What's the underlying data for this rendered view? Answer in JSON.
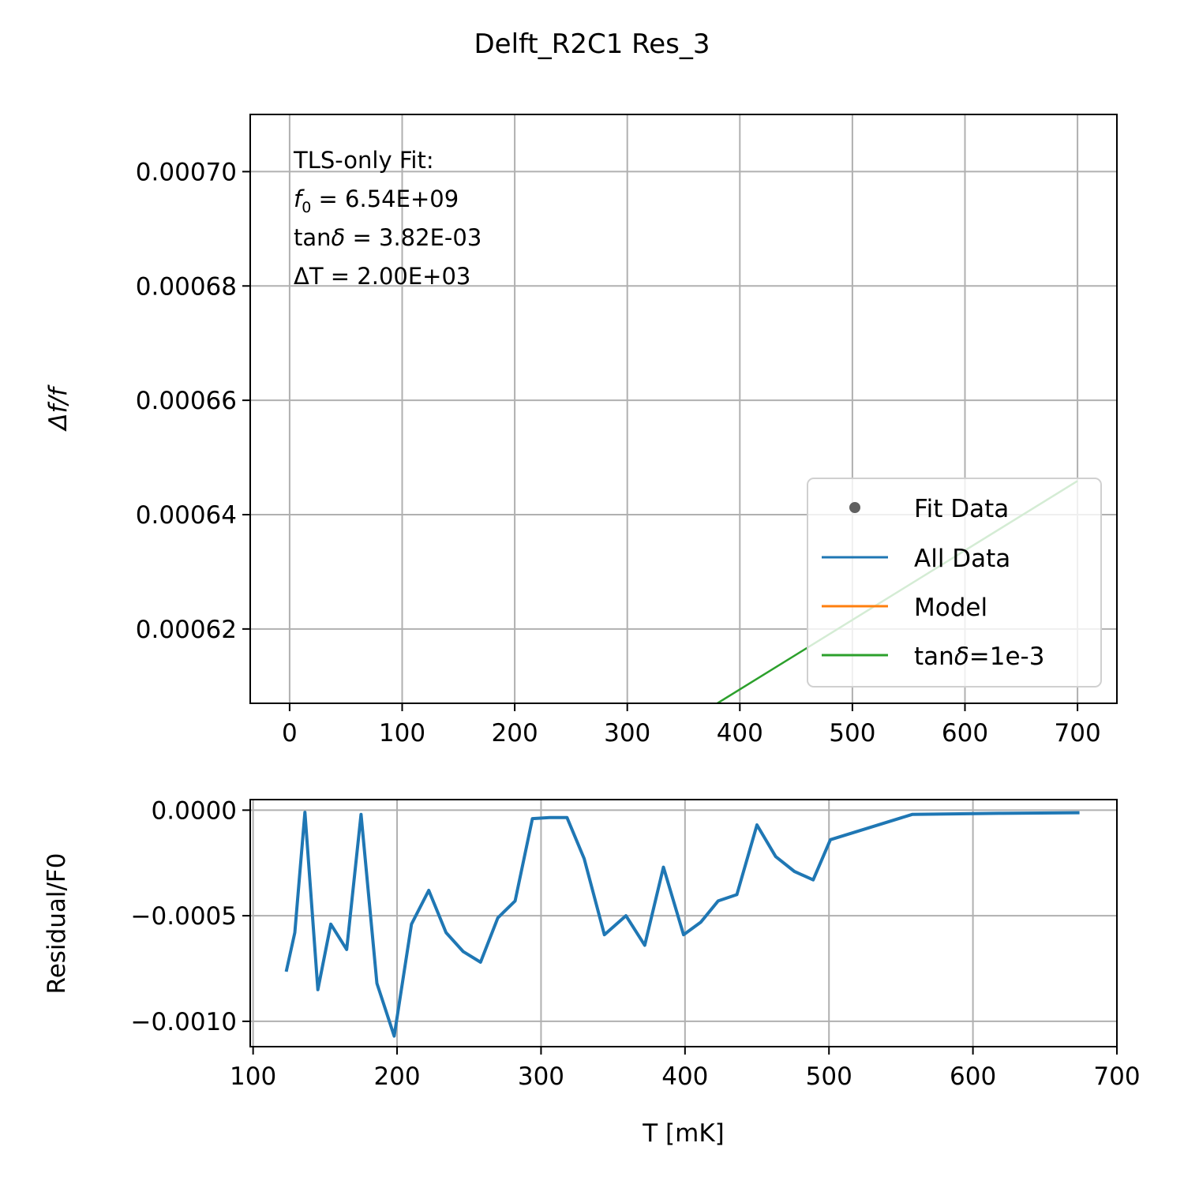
{
  "figure": {
    "title": "Delft_R2C1 Res_3"
  },
  "chart_data": [
    {
      "type": "line",
      "xlabel": "",
      "ylabel": "Δf/f",
      "xlim": [
        -35,
        735
      ],
      "ylim": [
        0.000607,
        0.00071
      ],
      "x_ticks": [
        0,
        100,
        200,
        300,
        400,
        500,
        600,
        700
      ],
      "x_tick_labels": [
        "0",
        "100",
        "200",
        "300",
        "400",
        "500",
        "600",
        "700"
      ],
      "y_ticks": [
        0.00062,
        0.00064,
        0.00066,
        0.00068,
        0.0007
      ],
      "y_tick_labels": [
        "0.00062",
        "0.00064",
        "0.00066",
        "0.00068",
        "0.00070"
      ],
      "grid": true,
      "annotation": {
        "line1": "TLS-only Fit:",
        "line2_var": "f",
        "line2_sub": "0",
        "line2_rest": " = 6.54E+09",
        "line3_pre": "tan",
        "line3_var": "δ",
        "line3_rest": " = 3.82E-03",
        "line4": "ΔT = 2.00E+03"
      },
      "legend": {
        "placement": "lower right",
        "entries": [
          {
            "label": "Fit Data",
            "marker": "dot",
            "color": "#606060"
          },
          {
            "label": "All Data",
            "marker": "line",
            "color": "#1f77b4"
          },
          {
            "label": "Model",
            "marker": "line",
            "color": "#ff7f0e"
          },
          {
            "label_pre": "tan",
            "label_var": "δ",
            "label_rest": "=1e-3",
            "marker": "line",
            "color": "#2ca02c"
          }
        ]
      },
      "series": [
        {
          "color": "#2ca02c",
          "x": [
            380,
            700
          ],
          "y": [
            0.000607,
            0.0006459
          ]
        }
      ]
    },
    {
      "type": "line",
      "xlabel": "T [mK]",
      "ylabel": "Residual/F0",
      "xlim": [
        98,
        700
      ],
      "ylim": [
        -0.00112,
        5e-05
      ],
      "x_ticks": [
        100,
        200,
        300,
        400,
        500,
        600,
        700
      ],
      "x_tick_labels": [
        "100",
        "200",
        "300",
        "400",
        "500",
        "600",
        "700"
      ],
      "y_ticks": [
        0,
        -0.0005,
        -0.001
      ],
      "y_tick_labels": [
        "0.0000",
        "−0.0005",
        "−0.0010"
      ],
      "grid": true,
      "series": [
        {
          "color": "#1f77b4",
          "x": [
            123,
            129,
            136,
            145,
            154,
            165,
            175,
            186,
            198,
            210,
            222,
            234,
            246,
            258,
            270,
            282,
            294,
            306,
            318,
            330,
            344,
            359,
            372,
            385,
            399,
            411,
            423,
            436,
            450,
            463,
            476,
            489,
            501,
            558,
            618,
            674
          ],
          "y": [
            -0.000765,
            -0.00058,
            -1e-05,
            -0.00085,
            -0.00054,
            -0.00066,
            -2e-05,
            -0.00082,
            -0.00107,
            -0.00054,
            -0.00038,
            -0.00058,
            -0.00067,
            -0.00072,
            -0.00051,
            -0.00043,
            -4e-05,
            -3.5e-05,
            -3.5e-05,
            -0.00023,
            -0.00059,
            -0.0005,
            -0.00064,
            -0.00027,
            -0.00059,
            -0.00053,
            -0.00043,
            -0.0004,
            -7e-05,
            -0.00022,
            -0.00029,
            -0.00033,
            -0.00014,
            -2e-05,
            -1.5e-05,
            -1.2e-05
          ]
        }
      ]
    }
  ]
}
